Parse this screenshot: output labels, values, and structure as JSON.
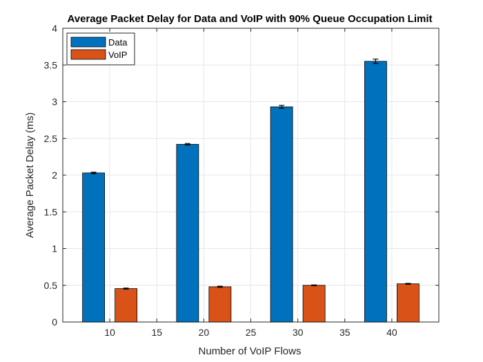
{
  "chart_data": {
    "type": "bar",
    "title": "Average Packet Delay for Data and VoIP with 90% Queue Occupation Limit",
    "xlabel": "Number of VoIP Flows",
    "ylabel": "Average Packet Delay (ms)",
    "x": [
      10,
      20,
      30,
      40
    ],
    "xlim": [
      5,
      45
    ],
    "ylim": [
      0,
      4
    ],
    "xticks": [
      10,
      15,
      20,
      25,
      30,
      35,
      40
    ],
    "yticks": [
      0,
      0.5,
      1,
      1.5,
      2,
      2.5,
      3,
      3.5,
      4
    ],
    "grid": true,
    "legend_position": "top-left",
    "series": [
      {
        "name": "Data",
        "color": "#0072BD",
        "values": [
          2.03,
          2.42,
          2.93,
          3.55
        ],
        "errors": [
          0.01,
          0.01,
          0.02,
          0.03
        ]
      },
      {
        "name": "VoIP",
        "color": "#D95319",
        "values": [
          0.455,
          0.48,
          0.5,
          0.52
        ],
        "errors": [
          0.007,
          0.007,
          0.005,
          0.006
        ]
      }
    ]
  }
}
